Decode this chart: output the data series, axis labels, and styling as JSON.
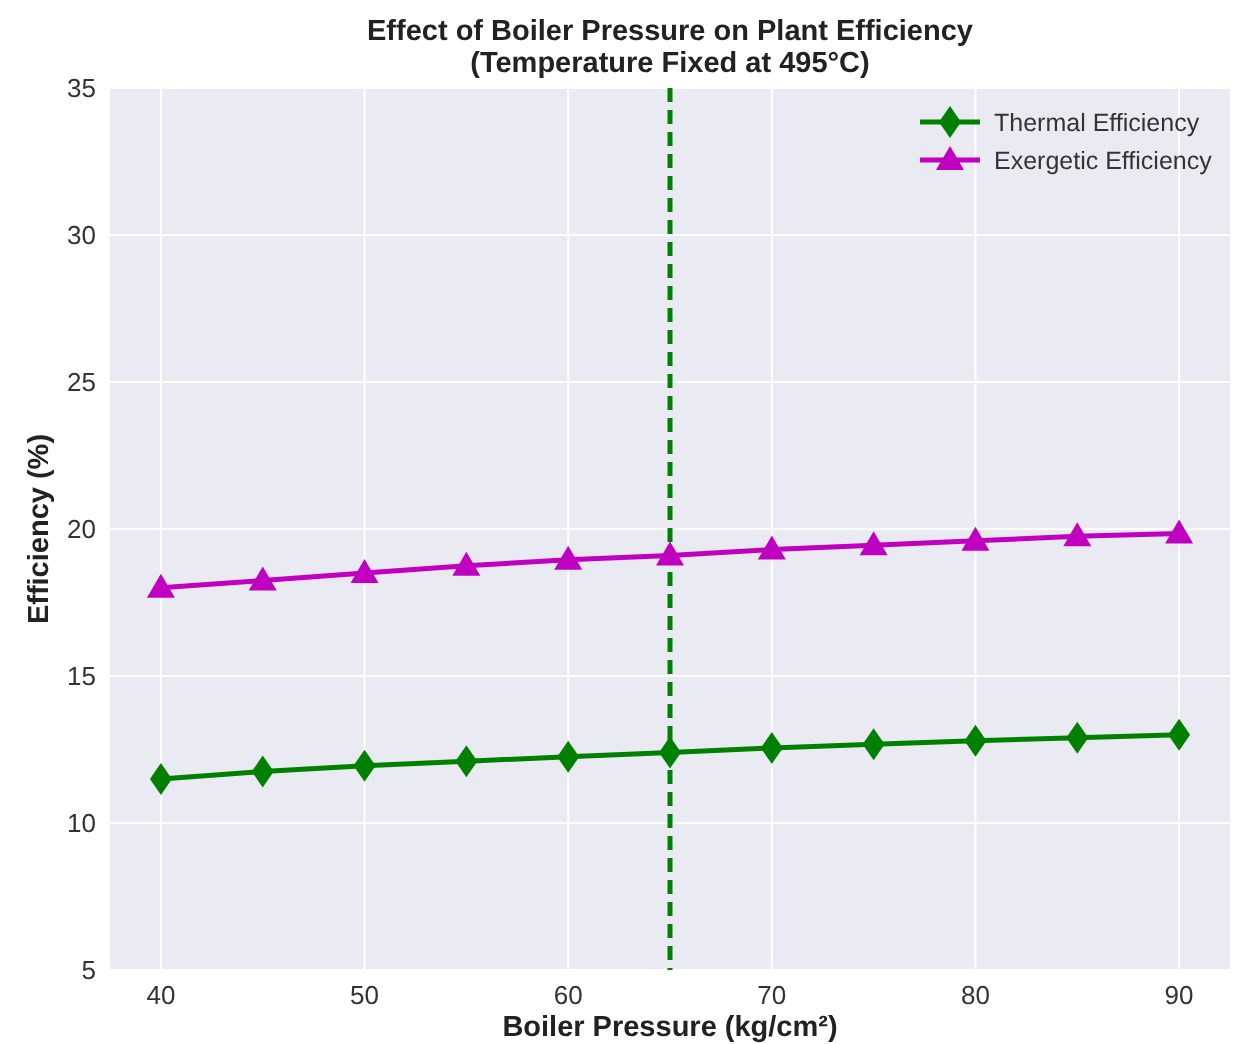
{
  "chart_data": {
    "type": "line",
    "title": "Effect of Boiler Pressure on Plant Efficiency\n(Temperature Fixed at 495°C)",
    "xlabel": "Boiler Pressure (kg/cm²)",
    "ylabel": "Efficiency (%)",
    "x": [
      40,
      45,
      50,
      55,
      60,
      65,
      70,
      75,
      80,
      85,
      90
    ],
    "series": [
      {
        "name": "Thermal Efficiency",
        "color": "#008000",
        "marker": "diamond",
        "values": [
          11.5,
          11.75,
          11.95,
          12.1,
          12.25,
          12.4,
          12.55,
          12.68,
          12.8,
          12.9,
          13.0
        ]
      },
      {
        "name": "Exergetic Efficiency",
        "color": "#c000c0",
        "marker": "triangle",
        "values": [
          18.0,
          18.25,
          18.5,
          18.75,
          18.95,
          19.1,
          19.3,
          19.45,
          19.6,
          19.75,
          19.85
        ]
      }
    ],
    "xlim": [
      37.5,
      92.5
    ],
    "ylim": [
      5,
      35
    ],
    "xticks": [
      40,
      50,
      60,
      70,
      80,
      90
    ],
    "yticks": [
      5,
      10,
      15,
      20,
      25,
      30,
      35
    ],
    "ref_lines": [
      {
        "axis": "x",
        "value": 65,
        "color": "#008000",
        "line_style": "dashed"
      }
    ],
    "grid": true,
    "legend": "top right",
    "line_style": "solid"
  }
}
